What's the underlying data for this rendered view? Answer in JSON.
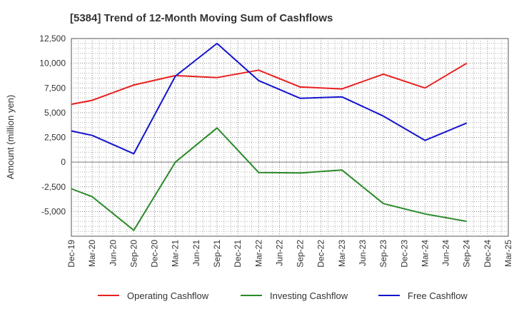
{
  "chart_data": {
    "type": "line",
    "title": "[5384]  Trend of 12-Month Moving Sum of Cashflows",
    "xlabel": "",
    "ylabel": "Amount (million yen)",
    "ylim": [
      -7500,
      12500
    ],
    "yticks": [
      12500,
      10000,
      7500,
      5000,
      2500,
      0,
      -2500,
      -5000
    ],
    "ytick_labels": [
      "12,500",
      "10,000",
      "7,500",
      "5,000",
      "2,500",
      "0",
      "-2,500",
      "-5,000"
    ],
    "categories": [
      "Dec-19",
      "Mar-20",
      "Jun-20",
      "Sep-20",
      "Dec-20",
      "Mar-21",
      "Jun-21",
      "Sep-21",
      "Dec-21",
      "Mar-22",
      "Jun-22",
      "Sep-22",
      "Dec-22",
      "Mar-23",
      "Jun-23",
      "Sep-23",
      "Dec-23",
      "Mar-24",
      "Jun-24",
      "Sep-24",
      "Dec-24",
      "Mar-25"
    ],
    "grid": true,
    "legend": "bottom",
    "series": [
      {
        "name": "Operating Cashflow",
        "color": "#e8201f",
        "values": [
          5850,
          6250,
          null,
          7800,
          null,
          8750,
          null,
          8550,
          null,
          9300,
          null,
          7600,
          null,
          7400,
          null,
          8900,
          null,
          7500,
          null,
          10000,
          null,
          null
        ]
      },
      {
        "name": "Investing Cashflow",
        "color": "#2a8a2a",
        "values": [
          -2700,
          -3500,
          null,
          -6900,
          null,
          0,
          null,
          3450,
          null,
          -1050,
          null,
          -1100,
          null,
          -800,
          null,
          -4200,
          null,
          -5250,
          null,
          -6000,
          null,
          null
        ]
      },
      {
        "name": "Free Cashflow",
        "color": "#1414cc",
        "values": [
          3150,
          2700,
          null,
          850,
          null,
          8700,
          null,
          12000,
          null,
          8250,
          null,
          6450,
          null,
          6600,
          null,
          4650,
          null,
          2200,
          null,
          3950,
          null,
          null
        ]
      }
    ]
  }
}
